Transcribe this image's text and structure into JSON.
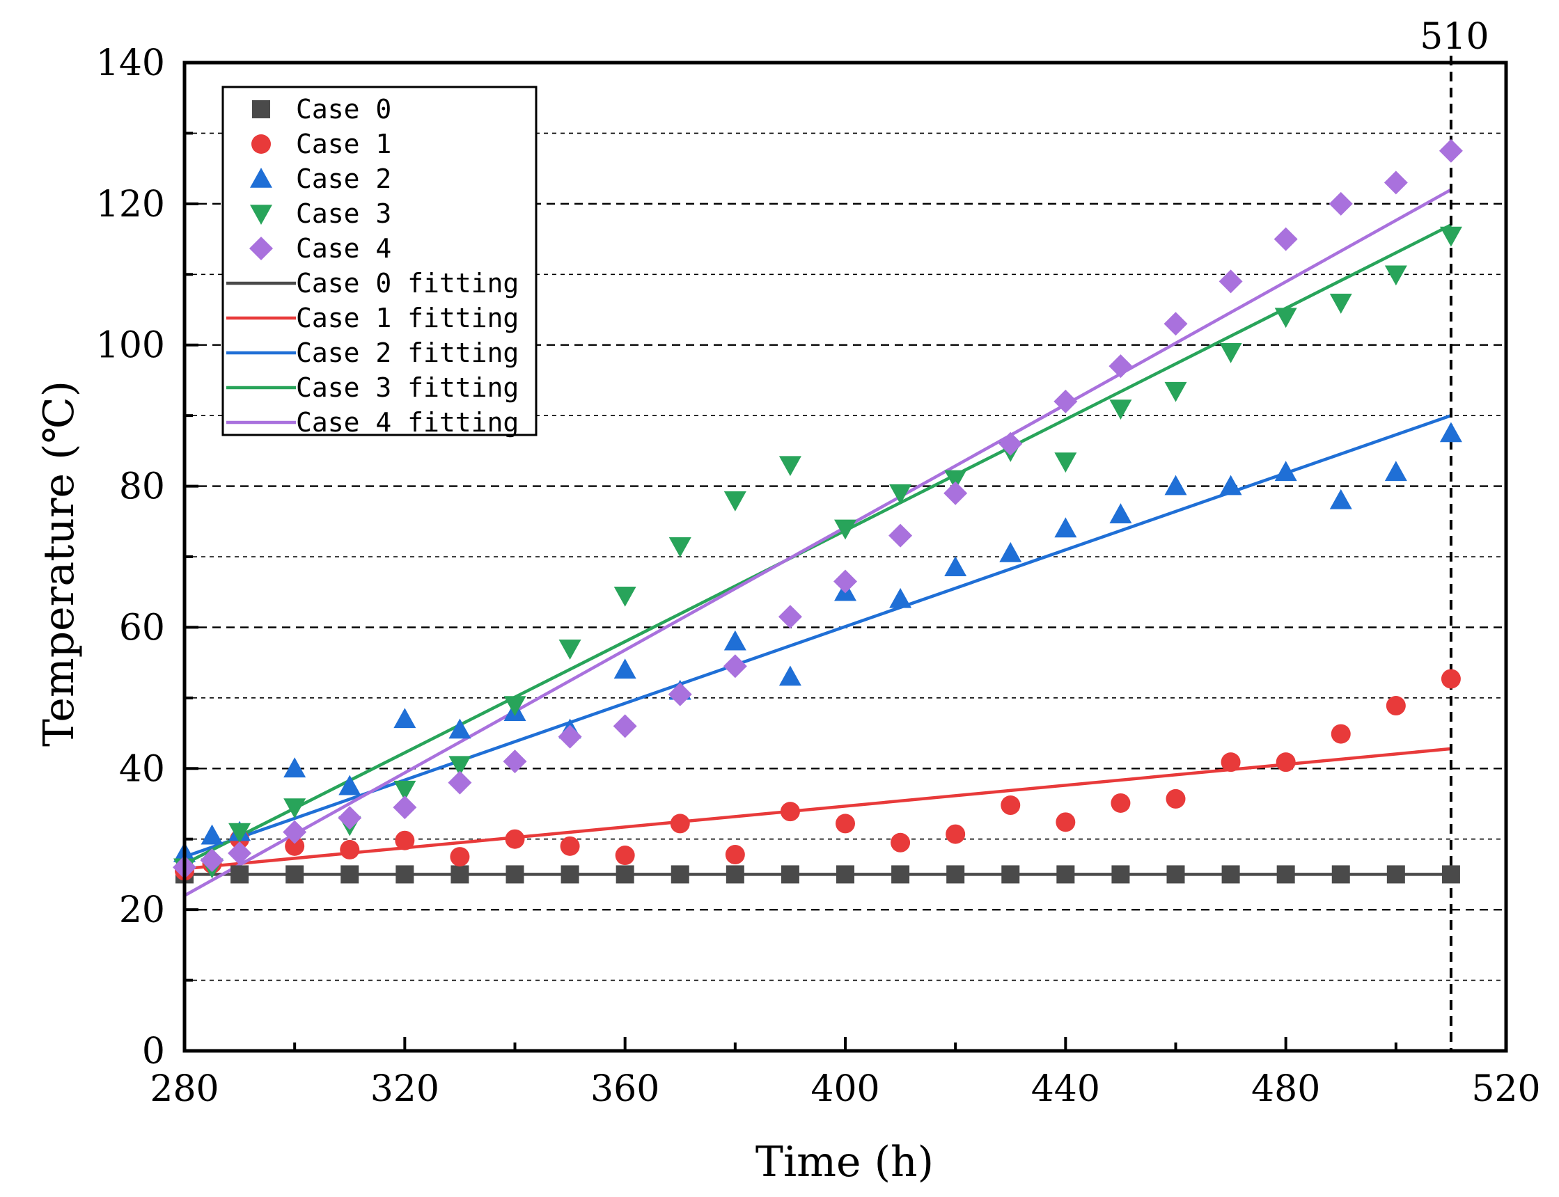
{
  "chart_data": {
    "type": "scatter",
    "xlabel": "Time (h)",
    "ylabel": "Temperature (℃)",
    "xlim": [
      280,
      520
    ],
    "ylim": [
      0,
      140
    ],
    "xticks": [
      280,
      320,
      360,
      400,
      440,
      480,
      520
    ],
    "yticks": [
      0,
      20,
      40,
      60,
      80,
      100,
      120,
      140
    ],
    "grid": "horizontal dashed",
    "legend_position": "top-left",
    "vline": {
      "x": 510,
      "label": "510"
    },
    "series": [
      {
        "name": "Case 0",
        "marker": "square",
        "color": "#4a4a4a",
        "x": [
          280,
          290,
          300,
          310,
          320,
          330,
          340,
          350,
          360,
          370,
          380,
          390,
          400,
          410,
          420,
          430,
          440,
          450,
          460,
          470,
          480,
          490,
          500,
          510
        ],
        "y": [
          25,
          25,
          25,
          25,
          25,
          25,
          25,
          25,
          25,
          25,
          25,
          25,
          25,
          25,
          25,
          25,
          25,
          25,
          25,
          25,
          25,
          25,
          25,
          25
        ]
      },
      {
        "name": "Case 1",
        "marker": "circle",
        "color": "#e83a3a",
        "x": [
          280,
          285,
          290,
          300,
          310,
          320,
          330,
          340,
          350,
          360,
          370,
          380,
          390,
          400,
          410,
          420,
          430,
          440,
          450,
          460,
          470,
          480,
          490,
          500,
          510
        ],
        "y": [
          25.5,
          26.5,
          30,
          29,
          28.5,
          29.8,
          27.5,
          30,
          29,
          27.7,
          32.2,
          27.8,
          33.9,
          32.2,
          29.5,
          30.7,
          34.8,
          32.4,
          35.1,
          35.7,
          40.9,
          40.9,
          44.9,
          48.9,
          52.7
        ]
      },
      {
        "name": "Case 2",
        "marker": "triangle-up",
        "color": "#1f6fd6",
        "x": [
          280,
          285,
          290,
          300,
          310,
          320,
          330,
          340,
          350,
          360,
          370,
          380,
          390,
          400,
          410,
          420,
          430,
          440,
          450,
          460,
          470,
          480,
          490,
          500,
          510
        ],
        "y": [
          28,
          30.5,
          31,
          40,
          37.5,
          47,
          45.5,
          48,
          45.5,
          54,
          51,
          58,
          53,
          65,
          64,
          68.5,
          70.5,
          74,
          76,
          80,
          80,
          82,
          78,
          82,
          87.5
        ]
      },
      {
        "name": "Case 3",
        "marker": "triangle-down",
        "color": "#28a45a",
        "x": [
          280,
          285,
          290,
          300,
          310,
          320,
          330,
          340,
          350,
          360,
          370,
          380,
          390,
          400,
          410,
          420,
          430,
          440,
          450,
          460,
          470,
          480,
          490,
          500,
          510
        ],
        "y": [
          26,
          26,
          31,
          34.5,
          32,
          37,
          40.5,
          49,
          57,
          64.5,
          71.5,
          78,
          83,
          74,
          79,
          81,
          85,
          83.5,
          91,
          93.5,
          99,
          104,
          106,
          110,
          115.5
        ]
      },
      {
        "name": "Case 4",
        "marker": "diamond",
        "color": "#a971dd",
        "x": [
          280,
          285,
          290,
          300,
          310,
          320,
          330,
          340,
          350,
          360,
          370,
          380,
          390,
          400,
          410,
          420,
          430,
          440,
          450,
          460,
          470,
          480,
          490,
          500,
          510
        ],
        "y": [
          26,
          27,
          28,
          31,
          33,
          34.5,
          38,
          41,
          44.5,
          46,
          50.5,
          54.5,
          61.5,
          66.5,
          73,
          79,
          86,
          92,
          97,
          103,
          109,
          115,
          120,
          123,
          127.5
        ]
      }
    ],
    "fits": [
      {
        "name": "Case 0 fitting",
        "color": "#4a4a4a",
        "x": [
          280,
          510
        ],
        "y": [
          25,
          25
        ]
      },
      {
        "name": "Case 1 fitting",
        "color": "#e83a3a",
        "x": [
          280,
          510
        ],
        "y": [
          25.8,
          42.8
        ]
      },
      {
        "name": "Case 2 fitting",
        "color": "#1f6fd6",
        "x": [
          280,
          510
        ],
        "y": [
          27.5,
          90
        ]
      },
      {
        "name": "Case 3 fitting",
        "color": "#28a45a",
        "x": [
          280,
          510
        ],
        "y": [
          26.5,
          117
        ]
      },
      {
        "name": "Case 4 fitting",
        "color": "#a971dd",
        "x": [
          280,
          510
        ],
        "y": [
          22,
          122
        ]
      }
    ]
  }
}
